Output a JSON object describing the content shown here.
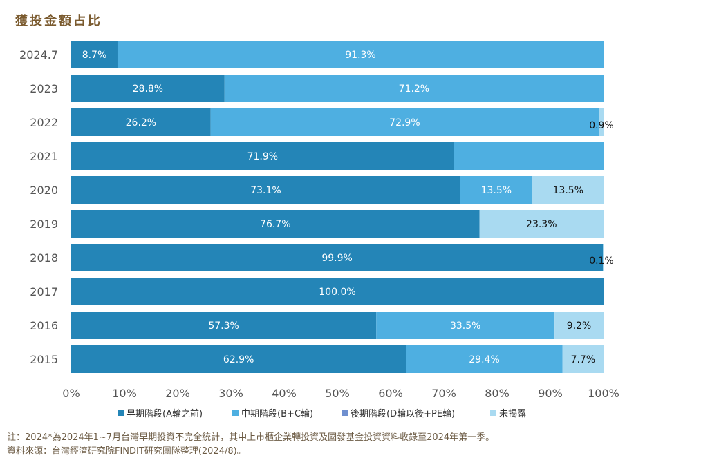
{
  "colors": {
    "early": "#2485b7",
    "mid": "#4eafe1",
    "late": "#6f8fcf",
    "undisclosed": "#a9daf1",
    "title": "#7a5a2e",
    "note": "#6b5a43",
    "axis_text": "#555555"
  },
  "chart_data": {
    "type": "bar",
    "orientation": "horizontal",
    "stacked": true,
    "title": "獲投金額占比",
    "categories": [
      "2024.7",
      "2023",
      "2022",
      "2021",
      "2020",
      "2019",
      "2018",
      "2017",
      "2016",
      "2015"
    ],
    "series": [
      {
        "name": "早期階段(A輪之前)",
        "values": [
          8.7,
          28.8,
          26.2,
          71.9,
          73.1,
          76.7,
          99.9,
          100.0,
          57.3,
          62.9
        ],
        "labels": [
          "8.7%",
          "28.8%",
          "26.2%",
          "71.9%",
          "73.1%",
          "76.7%",
          "99.9%",
          "100.0%",
          "57.3%",
          "62.9%"
        ]
      },
      {
        "name": "中期階段(B+C輪)",
        "values": [
          91.3,
          71.2,
          72.9,
          28.1,
          13.5,
          0,
          0,
          0,
          33.5,
          29.4
        ],
        "labels": [
          "91.3%",
          "71.2%",
          "72.9%",
          "",
          "13.5%",
          "",
          "",
          "",
          "33.5%",
          "29.4%"
        ]
      },
      {
        "name": "後期階段(D輪以後+PE輪)",
        "values": [
          0,
          0,
          0,
          0,
          0,
          0,
          0,
          0,
          0,
          0
        ],
        "labels": [
          "",
          "",
          "",
          "",
          "",
          "",
          "",
          "",
          "",
          ""
        ]
      },
      {
        "name": "未揭露",
        "values": [
          0,
          0,
          0.9,
          0,
          13.5,
          23.3,
          0.1,
          0,
          9.2,
          7.7
        ],
        "labels": [
          "",
          "",
          "0.9%",
          "",
          "13.5%",
          "23.3%",
          "0.1%",
          "",
          "9.2%",
          "7.7%"
        ]
      }
    ],
    "x_ticks": [
      "0%",
      "10%",
      "20%",
      "30%",
      "40%",
      "50%",
      "60%",
      "70%",
      "80%",
      "90%",
      "100%"
    ],
    "xlim": [
      0,
      100
    ],
    "grid": false,
    "legend_position": "bottom"
  },
  "notes": {
    "footnote": "註：2024*為2024年1~7月台灣早期投資不完全統計，其中上市櫃企業轉投資及國發基金投資資料收錄至2024年第一季。",
    "source": "資料來源：台灣經濟研究院FINDIT研究團隊整理(2024/8)。"
  }
}
